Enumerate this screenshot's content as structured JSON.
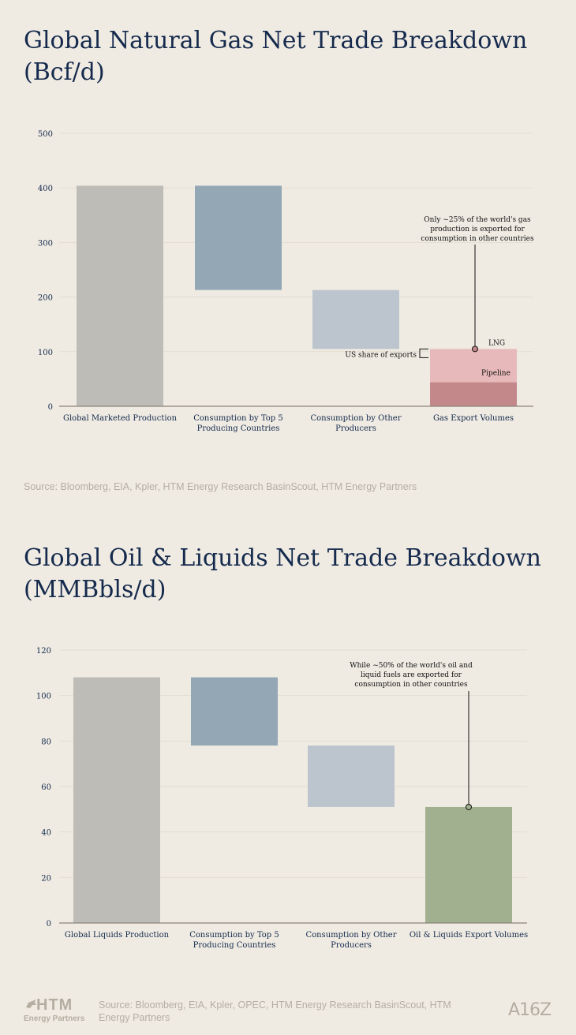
{
  "chart1": {
    "title": "Global Natural Gas Net Trade Breakdown (Bcf/d)",
    "source": "Source: Bloomberg, EIA, Kpler, HTM Energy Research BasinScout, HTM Energy Partners",
    "annotation_lines": [
      "Only ~25% of the world's gas",
      "production is exported for",
      "consumption in other countries"
    ],
    "us_share_label": "US share of exports",
    "lng_label": "LNG",
    "pipeline_label": "Pipeline"
  },
  "chart2": {
    "title": "Global Oil & Liquids Net Trade Breakdown (MMBbls/d)",
    "source": "Source: Bloomberg, EIA, Kpler, OPEC, HTM Energy Research BasinScout, HTM Energy Partners",
    "annotation_lines": [
      "While ~50% of the world's oil and",
      "liquid fuels are exported for",
      "consumption in other countries"
    ]
  },
  "footer": {
    "htm_logo_word": "HTM",
    "htm_logo_sub": "Energy Partners",
    "a16z_logo": "A16Z"
  },
  "colors": {
    "production": "#bebcb6",
    "top5": "#93a7b5",
    "other": "#bcc4cd",
    "pipeline_exports": "#e8b9ba",
    "lng_us_share": "#c2888a",
    "oil_exports": "#a1b18f",
    "axis_text": "#13294b",
    "grid": "#e2ddd0"
  },
  "chart_data": [
    {
      "type": "bar",
      "subtype": "waterfall",
      "categories": [
        [
          "Global Marketed Production"
        ],
        [
          "Consumption by Top 5",
          "Producing Countries"
        ],
        [
          "Consumption by Other",
          "Producers"
        ],
        [
          "Gas Export Volumes"
        ]
      ],
      "bars": [
        {
          "base": 0,
          "top": 404
        },
        {
          "base": 213,
          "top": 404
        },
        {
          "base": 105,
          "top": 213
        },
        {
          "base": 0,
          "top": 105,
          "segments": [
            {
              "name": "LNG",
              "base": 0,
              "top": 44
            },
            {
              "name": "Pipeline",
              "base": 44,
              "top": 105
            }
          ]
        }
      ],
      "ylim": [
        0,
        500
      ],
      "yticks": [
        0,
        100,
        200,
        300,
        400,
        500
      ],
      "grid": true
    },
    {
      "type": "bar",
      "subtype": "waterfall",
      "categories": [
        [
          "Global Liquids Production"
        ],
        [
          "Consumption by Top 5",
          "Producing Countries"
        ],
        [
          "Consumption by Other",
          "Producers"
        ],
        [
          "Oil & Liquids Export Volumes"
        ]
      ],
      "bars": [
        {
          "base": 0,
          "top": 108
        },
        {
          "base": 78,
          "top": 108
        },
        {
          "base": 51,
          "top": 78
        },
        {
          "base": 0,
          "top": 51
        }
      ],
      "ylim": [
        0,
        120
      ],
      "yticks": [
        0,
        20,
        40,
        60,
        80,
        100,
        120
      ],
      "grid": true
    }
  ]
}
